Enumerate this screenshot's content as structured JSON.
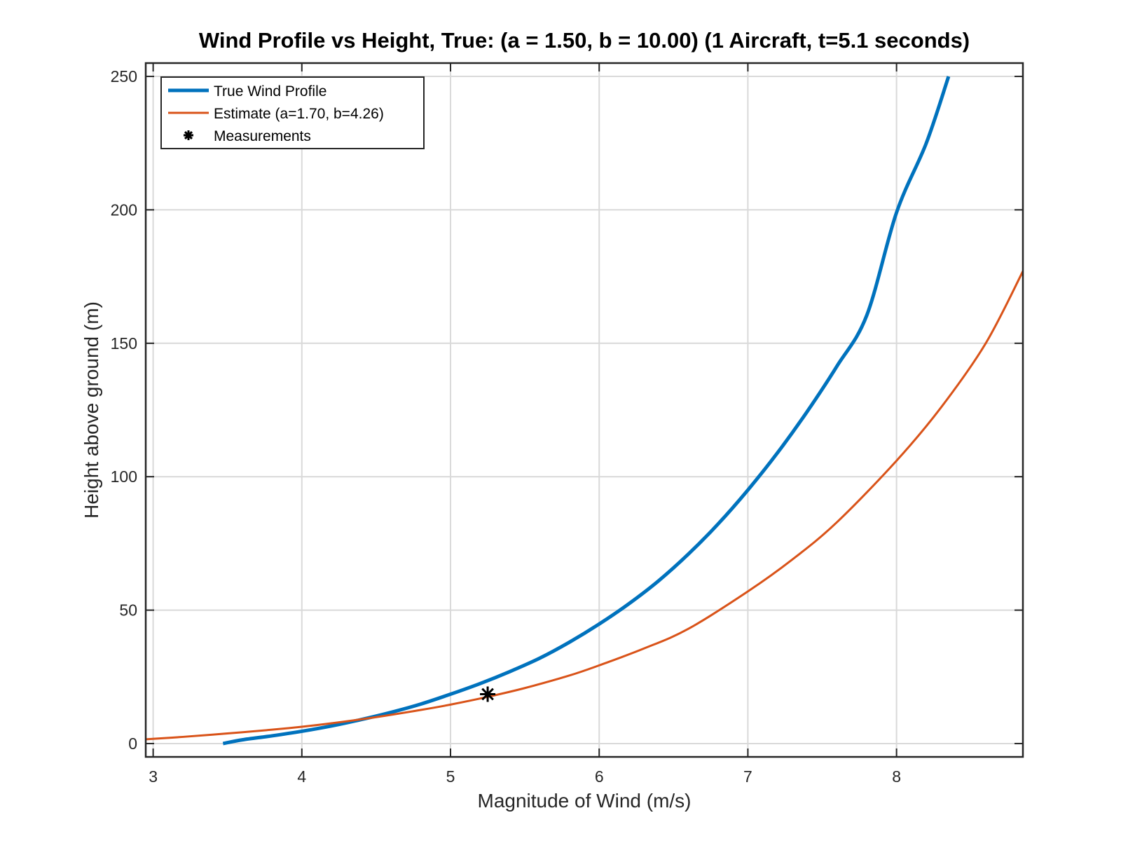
{
  "chart_data": {
    "type": "line",
    "title": "Wind Profile vs Height, True: (a = 1.50, b = 10.00) (1 Aircraft, t=5.1 seconds)",
    "xlabel": "Magnitude of Wind (m/s)",
    "ylabel": "Height above ground (m)",
    "xlim": [
      2.95,
      8.85
    ],
    "ylim": [
      -5,
      255
    ],
    "xticks": [
      3,
      4,
      5,
      6,
      7,
      8
    ],
    "yticks": [
      0,
      50,
      100,
      150,
      200,
      250
    ],
    "grid": true,
    "legend_position": "top-left",
    "series": [
      {
        "name": "True Wind Profile",
        "color": "#0072BD",
        "line_style": "solid",
        "x": [
          3.47,
          3.6,
          3.8,
          4.0,
          4.2,
          4.4,
          4.6,
          4.8,
          5.0,
          5.2,
          5.4,
          5.6,
          5.8,
          6.0,
          6.2,
          6.4,
          6.6,
          6.8,
          7.0,
          7.2,
          7.4,
          7.6,
          7.8,
          8.0,
          8.2,
          8.35
        ],
        "y": [
          0,
          1.4,
          2.9,
          4.6,
          6.6,
          9.0,
          11.7,
          14.8,
          18.5,
          22.5,
          27.0,
          32.0,
          38.0,
          44.8,
          52.4,
          61.0,
          71.0,
          82.3,
          95.0,
          109.0,
          124.5,
          141.5,
          160.5,
          199.0,
          225.0,
          250.0
        ]
      },
      {
        "name": "Estimate (a=1.70, b=4.26)",
        "color": "#D95319",
        "line_style": "solid",
        "x": [
          2.95,
          3.2,
          3.5,
          3.8,
          4.0,
          4.2,
          4.5,
          4.8,
          5.0,
          5.25,
          5.5,
          5.8,
          6.0,
          6.3,
          6.6,
          7.0,
          7.3,
          7.6,
          8.0,
          8.3,
          8.6,
          8.85
        ],
        "y": [
          1.6,
          2.5,
          3.8,
          5.2,
          6.3,
          7.6,
          9.9,
          12.6,
          14.6,
          17.5,
          20.8,
          25.5,
          29.3,
          35.6,
          43.0,
          57.0,
          69.0,
          83.0,
          106.0,
          126.0,
          150.0,
          177.0
        ]
      },
      {
        "name": "Measurements",
        "color": "#000000",
        "marker": "asterisk",
        "x": [
          5.25
        ],
        "y": [
          18.5
        ]
      }
    ]
  }
}
